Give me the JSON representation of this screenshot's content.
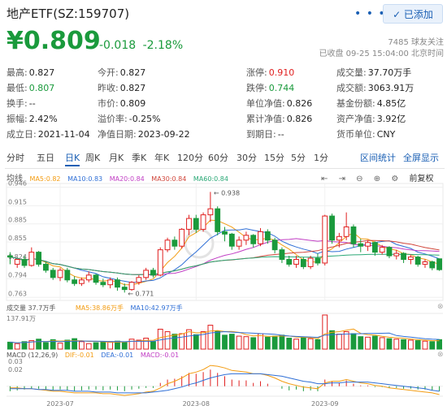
{
  "header": {
    "title": "地产ETF(SZ:159707)",
    "more": "• • •",
    "add_button": "✓ 已添加",
    "followers": "7485 球友关注",
    "status": "已收盘 09-25 15:04:00 北京时间"
  },
  "price": {
    "last": "¥0.809",
    "change": "-0.018",
    "change_pct": "-2.18%"
  },
  "quote": [
    {
      "label": "最高:",
      "value": "0.827",
      "color": ""
    },
    {
      "label": "今开:",
      "value": "0.827",
      "color": ""
    },
    {
      "label": "涨停:",
      "value": "0.910",
      "color": "up"
    },
    {
      "label": "成交量:",
      "value": "37.70万手",
      "color": ""
    },
    {
      "label": "最低:",
      "value": "0.807",
      "color": "dn"
    },
    {
      "label": "昨收:",
      "value": "0.827",
      "color": ""
    },
    {
      "label": "跌停:",
      "value": "0.744",
      "color": "dn"
    },
    {
      "label": "成交额:",
      "value": "3063.91万",
      "color": ""
    },
    {
      "label": "换手:",
      "value": "--",
      "color": ""
    },
    {
      "label": "市价:",
      "value": "0.809",
      "color": ""
    },
    {
      "label": "单位净值:",
      "value": "0.826",
      "color": ""
    },
    {
      "label": "基金份额:",
      "value": "4.85亿",
      "color": ""
    },
    {
      "label": "振幅:",
      "value": "2.42%",
      "color": ""
    },
    {
      "label": "溢价率:",
      "value": "-0.25%",
      "color": ""
    },
    {
      "label": "累计净值:",
      "value": "0.826",
      "color": ""
    },
    {
      "label": "资产净值:",
      "value": "3.92亿",
      "color": ""
    },
    {
      "label": "成立日:",
      "value": "2021-11-04",
      "color": ""
    },
    {
      "label": "净值日期:",
      "value": "2023-09-22",
      "color": ""
    },
    {
      "label": "到期日:",
      "value": "--",
      "color": ""
    },
    {
      "label": "货币单位:",
      "value": "CNY",
      "color": ""
    }
  ],
  "tabs": [
    "分时",
    "五日",
    "日K",
    "周K",
    "月K",
    "季K",
    "年K",
    "120分",
    "60分",
    "30分",
    "15分",
    "5分",
    "1分"
  ],
  "active_tab": "日K",
  "tab_links": [
    "区间统计",
    "全屏显示"
  ],
  "tools": {
    "left_arrow": "⇤",
    "right_arrow": "⇥",
    "zoom_out": "⊖",
    "zoom_in": "⊕",
    "adjust": "前复权"
  },
  "colors": {
    "up": "#e02020",
    "down": "#1a9a3c",
    "accent": "#1a5fb4",
    "ma5": "#f39c12",
    "ma10": "#2f6fd6",
    "ma20": "#c13ec4",
    "ma30": "#d0453a",
    "ma60": "#2aa876"
  },
  "chart_data": {
    "type": "candlestick",
    "ma_legend": {
      "prefix": "均线",
      "ma5": "MA5:0.82",
      "ma10": "MA10:0.83",
      "ma20": "MA20:0.84",
      "ma30": "MA30:0.84",
      "ma60": "MA60:0.84"
    },
    "price_ticks": [
      "0.946",
      "0.915",
      "0.885",
      "0.855",
      "0.824",
      "0.794",
      "0.763"
    ],
    "ylim": [
      0.758,
      0.952
    ],
    "max_label": "0.938",
    "min_label": "0.771",
    "x_labels": [
      "2023-07",
      "2023-08",
      "2023-09"
    ],
    "x_label_index": [
      7,
      26,
      44
    ],
    "candles": [
      [
        0.832,
        0.838,
        0.83,
        0.818
      ],
      [
        0.818,
        0.826,
        0.826,
        0.812
      ],
      [
        0.826,
        0.832,
        0.816,
        0.812
      ],
      [
        0.816,
        0.846,
        0.838,
        0.814
      ],
      [
        0.838,
        0.84,
        0.818,
        0.814
      ],
      [
        0.818,
        0.822,
        0.808,
        0.804
      ],
      [
        0.808,
        0.812,
        0.796,
        0.792
      ],
      [
        0.796,
        0.812,
        0.808,
        0.79
      ],
      [
        0.808,
        0.812,
        0.792,
        0.788
      ],
      [
        0.792,
        0.798,
        0.786,
        0.782
      ],
      [
        0.786,
        0.796,
        0.792,
        0.782
      ],
      [
        0.792,
        0.806,
        0.8,
        0.788
      ],
      [
        0.8,
        0.802,
        0.788,
        0.784
      ],
      [
        0.788,
        0.794,
        0.784,
        0.78
      ],
      [
        0.784,
        0.796,
        0.792,
        0.778
      ],
      [
        0.792,
        0.796,
        0.78,
        0.774
      ],
      [
        0.78,
        0.786,
        0.776,
        0.771
      ],
      [
        0.776,
        0.79,
        0.788,
        0.774
      ],
      [
        0.788,
        0.8,
        0.796,
        0.784
      ],
      [
        0.796,
        0.812,
        0.808,
        0.792
      ],
      [
        0.808,
        0.812,
        0.8,
        0.796
      ],
      [
        0.8,
        0.846,
        0.842,
        0.798
      ],
      [
        0.842,
        0.862,
        0.858,
        0.838
      ],
      [
        0.858,
        0.864,
        0.848,
        0.842
      ],
      [
        0.848,
        0.878,
        0.876,
        0.844
      ],
      [
        0.876,
        0.9,
        0.894,
        0.866
      ],
      [
        0.894,
        0.9,
        0.876,
        0.87
      ],
      [
        0.876,
        0.904,
        0.9,
        0.872
      ],
      [
        0.9,
        0.938,
        0.91,
        0.888
      ],
      [
        0.91,
        0.914,
        0.872,
        0.866
      ],
      [
        0.872,
        0.88,
        0.868,
        0.856
      ],
      [
        0.868,
        0.87,
        0.848,
        0.842
      ],
      [
        0.848,
        0.864,
        0.858,
        0.842
      ],
      [
        0.858,
        0.872,
        0.866,
        0.85
      ],
      [
        0.866,
        0.868,
        0.852,
        0.846
      ],
      [
        0.852,
        0.878,
        0.872,
        0.848
      ],
      [
        0.872,
        0.876,
        0.858,
        0.852
      ],
      [
        0.858,
        0.862,
        0.842,
        0.836
      ],
      [
        0.842,
        0.846,
        0.826,
        0.82
      ],
      [
        0.826,
        0.832,
        0.818,
        0.814
      ],
      [
        0.818,
        0.832,
        0.826,
        0.812
      ],
      [
        0.826,
        0.83,
        0.814,
        0.81
      ],
      [
        0.814,
        0.832,
        0.828,
        0.81
      ],
      [
        0.828,
        0.836,
        0.82,
        0.816
      ],
      [
        0.82,
        0.9,
        0.898,
        0.816
      ],
      [
        0.898,
        0.902,
        0.858,
        0.852
      ],
      [
        0.858,
        0.87,
        0.864,
        0.846
      ],
      [
        0.864,
        0.904,
        0.88,
        0.858
      ],
      [
        0.88,
        0.884,
        0.852,
        0.846
      ],
      [
        0.852,
        0.86,
        0.848,
        0.838
      ],
      [
        0.848,
        0.858,
        0.854,
        0.84
      ],
      [
        0.854,
        0.856,
        0.838,
        0.832
      ],
      [
        0.838,
        0.85,
        0.846,
        0.834
      ],
      [
        0.846,
        0.848,
        0.832,
        0.828
      ],
      [
        0.832,
        0.842,
        0.836,
        0.826
      ],
      [
        0.836,
        0.838,
        0.826,
        0.82
      ],
      [
        0.826,
        0.834,
        0.83,
        0.818
      ],
      [
        0.83,
        0.832,
        0.818,
        0.814
      ],
      [
        0.818,
        0.826,
        0.822,
        0.812
      ],
      [
        0.822,
        0.824,
        0.812,
        0.808
      ],
      [
        0.827,
        0.827,
        0.809,
        0.807
      ]
    ],
    "volume_legend": {
      "vol": "成交量 37.7万手",
      "ma5": "MA5:38.86万手",
      "ma10": "MA10:42.97万手",
      "max": "137.91万"
    },
    "volumes": [
      28,
      22,
      30,
      34,
      40,
      26,
      38,
      24,
      36,
      42,
      30,
      22,
      26,
      28,
      30,
      32,
      26,
      40,
      36,
      44,
      30,
      80,
      70,
      60,
      62,
      78,
      58,
      70,
      96,
      72,
      56,
      60,
      52,
      50,
      46,
      62,
      48,
      52,
      56,
      44,
      40,
      46,
      42,
      38,
      137,
      74,
      60,
      70,
      62,
      50,
      48,
      52,
      46,
      42,
      40,
      38,
      36,
      34,
      32,
      30,
      38
    ],
    "macd_legend": {
      "name": "MACD (12,26,9)",
      "dif": "DIF:-0.01",
      "dea": "DEA:-0.01",
      "macd": "MACD:-0.01"
    },
    "macd_ticks": [
      "0.03",
      "0.02"
    ],
    "macd_hist": [
      -0.006,
      -0.005,
      -0.004,
      -0.003,
      -0.003,
      -0.004,
      -0.005,
      -0.004,
      -0.005,
      -0.006,
      -0.005,
      -0.004,
      -0.004,
      -0.005,
      -0.004,
      -0.005,
      -0.006,
      -0.004,
      -0.003,
      -0.002,
      -0.002,
      0.004,
      0.008,
      0.009,
      0.012,
      0.016,
      0.015,
      0.017,
      0.02,
      0.016,
      0.012,
      0.008,
      0.007,
      0.007,
      0.004,
      0.006,
      0.003,
      0.0,
      -0.003,
      -0.005,
      -0.004,
      -0.006,
      -0.005,
      -0.006,
      0.008,
      0.006,
      0.004,
      0.007,
      0.003,
      0.001,
      0.001,
      -0.001,
      -0.001,
      -0.002,
      -0.002,
      -0.003,
      -0.003,
      -0.004,
      -0.004,
      -0.005,
      -0.006
    ],
    "macd_dif": [
      -0.002,
      -0.002,
      -0.003,
      -0.003,
      -0.004,
      -0.005,
      -0.006,
      -0.006,
      -0.007,
      -0.008,
      -0.008,
      -0.008,
      -0.008,
      -0.009,
      -0.009,
      -0.01,
      -0.011,
      -0.01,
      -0.009,
      -0.007,
      -0.006,
      -0.002,
      0.003,
      0.006,
      0.01,
      0.015,
      0.017,
      0.02,
      0.025,
      0.024,
      0.022,
      0.019,
      0.018,
      0.017,
      0.015,
      0.015,
      0.013,
      0.01,
      0.006,
      0.003,
      0.001,
      -0.001,
      -0.002,
      -0.003,
      0.004,
      0.006,
      0.006,
      0.008,
      0.006,
      0.004,
      0.003,
      0.001,
      0.0,
      -0.002,
      -0.003,
      -0.004,
      -0.005,
      -0.006,
      -0.007,
      -0.008,
      -0.01
    ],
    "macd_dea": [
      -0.003,
      -0.003,
      -0.003,
      -0.003,
      -0.004,
      -0.004,
      -0.005,
      -0.005,
      -0.005,
      -0.006,
      -0.006,
      -0.006,
      -0.007,
      -0.007,
      -0.007,
      -0.008,
      -0.008,
      -0.008,
      -0.008,
      -0.008,
      -0.007,
      -0.006,
      -0.005,
      -0.003,
      -0.001,
      0.002,
      0.004,
      0.007,
      0.01,
      0.012,
      0.014,
      0.015,
      0.015,
      0.015,
      0.015,
      0.015,
      0.014,
      0.013,
      0.012,
      0.01,
      0.008,
      0.006,
      0.005,
      0.003,
      0.003,
      0.004,
      0.004,
      0.005,
      0.005,
      0.005,
      0.005,
      0.004,
      0.003,
      0.002,
      0.001,
      0.0,
      -0.001,
      -0.002,
      -0.003,
      -0.005,
      -0.006
    ]
  }
}
